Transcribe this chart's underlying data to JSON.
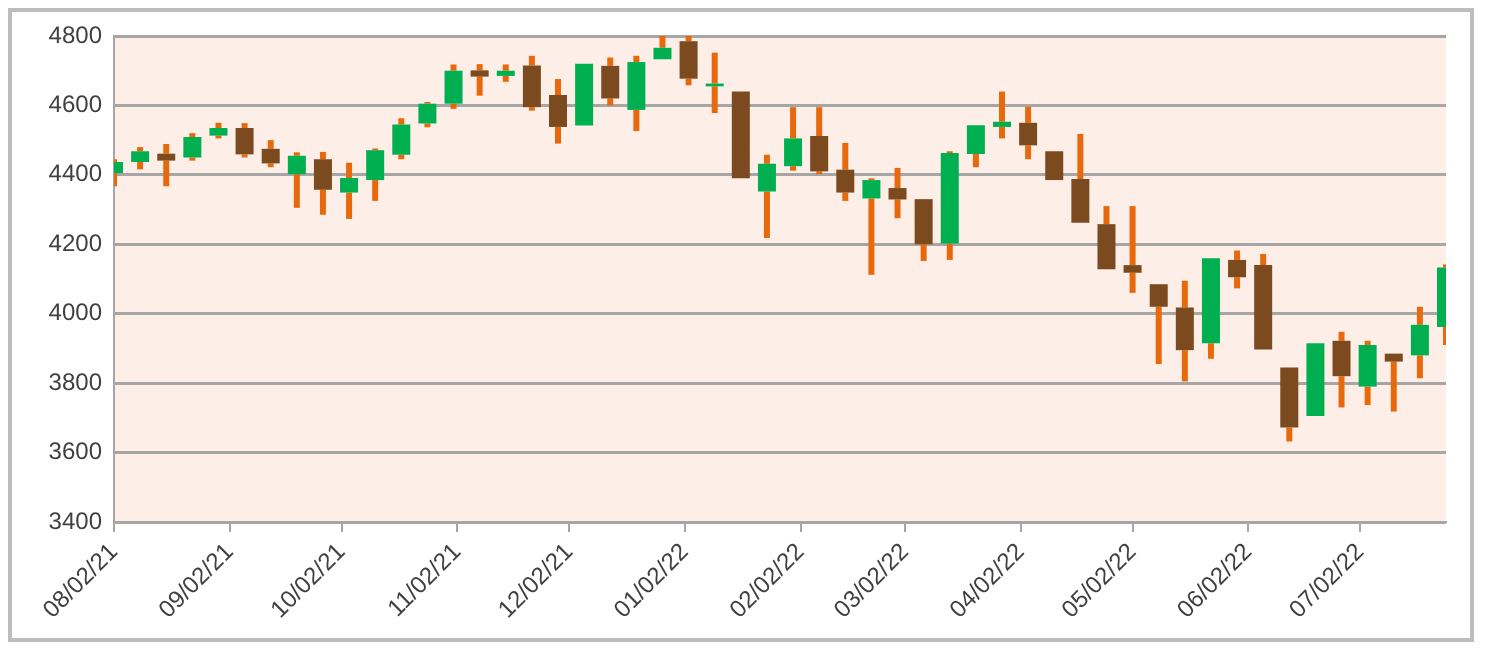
{
  "chart_data": {
    "type": "candlestick",
    "x": [
      "2021-08-02",
      "2021-08-09",
      "2021-08-16",
      "2021-08-23",
      "2021-08-30",
      "2021-09-06",
      "2021-09-13",
      "2021-09-20",
      "2021-09-27",
      "2021-10-04",
      "2021-10-11",
      "2021-10-18",
      "2021-10-25",
      "2021-11-01",
      "2021-11-08",
      "2021-11-15",
      "2021-11-22",
      "2021-11-29",
      "2021-12-06",
      "2021-12-13",
      "2021-12-20",
      "2021-12-27",
      "2022-01-03",
      "2022-01-10",
      "2022-01-17",
      "2022-01-24",
      "2022-01-31",
      "2022-02-07",
      "2022-02-14",
      "2022-02-21",
      "2022-02-28",
      "2022-03-07",
      "2022-03-14",
      "2022-03-21",
      "2022-03-28",
      "2022-04-04",
      "2022-04-11",
      "2022-04-18",
      "2022-04-25",
      "2022-05-02",
      "2022-05-09",
      "2022-05-16",
      "2022-05-23",
      "2022-05-30",
      "2022-06-06",
      "2022-06-13",
      "2022-06-20",
      "2022-06-27",
      "2022-07-04",
      "2022-07-11",
      "2022-07-18",
      "2022-07-25"
    ],
    "ohlc": [
      [
        4405,
        4445,
        4367,
        4437
      ],
      [
        4437,
        4480,
        4416,
        4468
      ],
      [
        4461,
        4489,
        4367,
        4441
      ],
      [
        4450,
        4520,
        4441,
        4509
      ],
      [
        4513,
        4550,
        4505,
        4535
      ],
      [
        4535,
        4549,
        4450,
        4459
      ],
      [
        4475,
        4500,
        4422,
        4433
      ],
      [
        4402,
        4465,
        4305,
        4455
      ],
      [
        4445,
        4466,
        4285,
        4357
      ],
      [
        4349,
        4435,
        4273,
        4391
      ],
      [
        4385,
        4476,
        4325,
        4471
      ],
      [
        4458,
        4563,
        4445,
        4545
      ],
      [
        4548,
        4610,
        4537,
        4605
      ],
      [
        4605,
        4718,
        4590,
        4700
      ],
      [
        4701,
        4719,
        4628,
        4683
      ],
      [
        4685,
        4718,
        4668,
        4700
      ],
      [
        4715,
        4743,
        4585,
        4595
      ],
      [
        4630,
        4676,
        4490,
        4538
      ],
      [
        4542,
        4720,
        4542,
        4720
      ],
      [
        4714,
        4738,
        4600,
        4620
      ],
      [
        4587,
        4743,
        4526,
        4725
      ],
      [
        4733,
        4800,
        4733,
        4766
      ],
      [
        4785,
        4800,
        4658,
        4677
      ],
      [
        4655,
        4752,
        4578,
        4663
      ],
      [
        4640,
        4640,
        4390,
        4390
      ],
      [
        4352,
        4458,
        4218,
        4432
      ],
      [
        4425,
        4595,
        4412,
        4505
      ],
      [
        4512,
        4595,
        4402,
        4410
      ],
      [
        4415,
        4492,
        4325,
        4349
      ],
      [
        4332,
        4390,
        4112,
        4385
      ],
      [
        4362,
        4420,
        4275,
        4329
      ],
      [
        4330,
        4330,
        4152,
        4200
      ],
      [
        4202,
        4468,
        4155,
        4463
      ],
      [
        4460,
        4543,
        4422,
        4543
      ],
      [
        4538,
        4640,
        4505,
        4553
      ],
      [
        4550,
        4596,
        4445,
        4485
      ],
      [
        4468,
        4468,
        4385,
        4385
      ],
      [
        4388,
        4518,
        4262,
        4262
      ],
      [
        4258,
        4310,
        4128,
        4128
      ],
      [
        4140,
        4310,
        4060,
        4118
      ],
      [
        4085,
        4085,
        3855,
        4020
      ],
      [
        4018,
        4095,
        3805,
        3895
      ],
      [
        3915,
        4160,
        3870,
        4160
      ],
      [
        4155,
        4182,
        4073,
        4105
      ],
      [
        4140,
        4172,
        3897,
        3897
      ],
      [
        3845,
        3845,
        3632,
        3672
      ],
      [
        3705,
        3915,
        3705,
        3915
      ],
      [
        3922,
        3948,
        3730,
        3820
      ],
      [
        3790,
        3922,
        3737,
        3910
      ],
      [
        3885,
        3885,
        3718,
        3862
      ],
      [
        3880,
        4020,
        3814,
        3968
      ],
      [
        3962,
        4142,
        3910,
        4133
      ]
    ],
    "colors": [
      "#00b050",
      "#00b050",
      "#7b4a1f",
      "#00b050",
      "#00b050",
      "#7b4a1f",
      "#7b4a1f",
      "#00b050",
      "#7b4a1f",
      "#00b050",
      "#00b050",
      "#00b050",
      "#00b050",
      "#00b050",
      "#7b4a1f",
      "#00b050",
      "#7b4a1f",
      "#7b4a1f",
      "#00b050",
      "#7b4a1f",
      "#00b050",
      "#00b050",
      "#7b4a1f",
      "#00b050",
      "#7b4a1f",
      "#00b050",
      "#00b050",
      "#7b4a1f",
      "#7b4a1f",
      "#00b050",
      "#7b4a1f",
      "#7b4a1f",
      "#00b050",
      "#00b050",
      "#00b050",
      "#7b4a1f",
      "#7b4a1f",
      "#7b4a1f",
      "#7b4a1f",
      "#7b4a1f",
      "#7b4a1f",
      "#7b4a1f",
      "#00b050",
      "#7b4a1f",
      "#7b4a1f",
      "#7b4a1f",
      "#00b050",
      "#7b4a1f",
      "#00b050",
      "#7b4a1f",
      "#00b050",
      "#00b050"
    ],
    "color": "#e8690c",
    "xlim": [
      "2021-08-02",
      "2022-07-25"
    ],
    "xticks": [
      {
        "value": "2021-08-02",
        "label": "08/02/21"
      },
      {
        "value": "2021-09-02",
        "label": "09/02/21"
      },
      {
        "value": "2021-10-02",
        "label": "10/02/21"
      },
      {
        "value": "2021-11-02",
        "label": "11/02/21"
      },
      {
        "value": "2021-12-02",
        "label": "12/02/21"
      },
      {
        "value": "2022-01-02",
        "label": "01/02/22"
      },
      {
        "value": "2022-02-02",
        "label": "02/02/22"
      },
      {
        "value": "2022-03-02",
        "label": "03/02/22"
      },
      {
        "value": "2022-04-02",
        "label": "04/02/22"
      },
      {
        "value": "2022-05-02",
        "label": "05/02/22"
      },
      {
        "value": "2022-06-02",
        "label": "06/02/22"
      },
      {
        "value": "2022-07-02",
        "label": "07/02/22"
      }
    ],
    "ylim": [
      3400,
      4800
    ],
    "yticks": [
      3400,
      3600,
      3800,
      4000,
      4200,
      4400,
      4600,
      4800
    ],
    "grid": "y",
    "legend": false
  }
}
